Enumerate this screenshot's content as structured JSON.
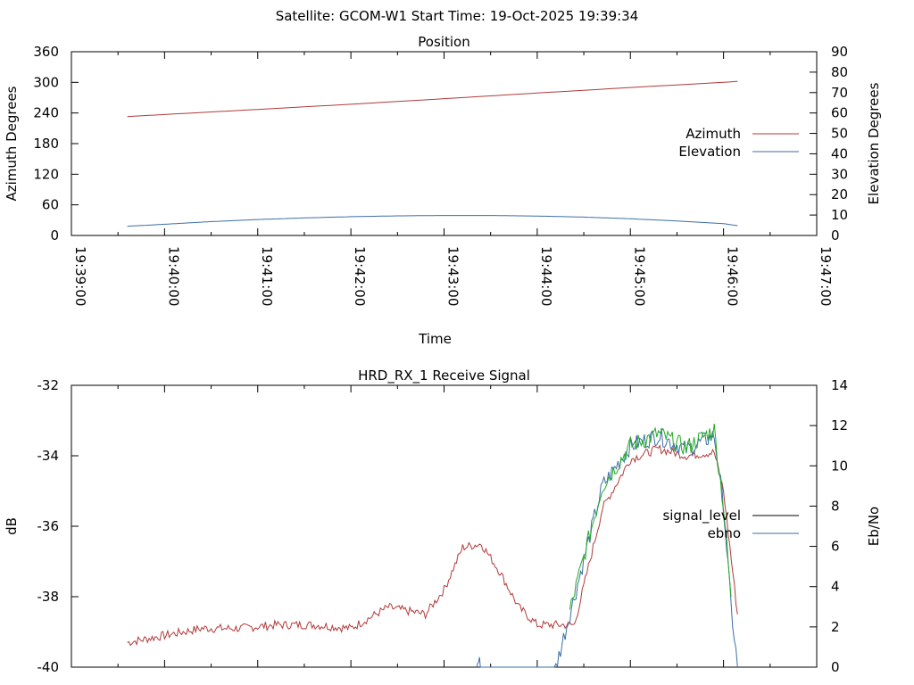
{
  "header": "Satellite: GCOM-W1    Start Time: 19-Oct-2025 19:39:34",
  "chart_data": [
    {
      "type": "line",
      "title": "Position",
      "xlabel": "Time",
      "ylabel": "Azimuth Degrees",
      "y2label": "Elevation Degrees",
      "x_ticks": [
        "19:39:00",
        "19:40:00",
        "19:41:00",
        "19:42:00",
        "19:43:00",
        "19:44:00",
        "19:45:00",
        "19:46:00",
        "19:47:00"
      ],
      "x_range_minutes": [
        0,
        8
      ],
      "y_ticks": [
        "0",
        "60",
        "120",
        "180",
        "240",
        "300",
        "360"
      ],
      "ylim": [
        0,
        360
      ],
      "y2_ticks": [
        "0",
        "10",
        "20",
        "30",
        "40",
        "50",
        "60",
        "70",
        "80",
        "90"
      ],
      "y2lim": [
        0,
        90
      ],
      "legend_position": "right",
      "grid": false,
      "series": [
        {
          "name": "Azimuth",
          "axis": "y",
          "color": "#b03a3a",
          "x": [
            0.6,
            1.0,
            2.0,
            3.0,
            4.0,
            5.0,
            6.0,
            7.0,
            7.15
          ],
          "values": [
            233,
            237,
            247,
            257,
            268,
            279,
            290,
            300,
            302
          ]
        },
        {
          "name": "Elevation",
          "axis": "y2",
          "color": "#3a6ea5",
          "x": [
            0.6,
            1.0,
            1.5,
            2.0,
            2.5,
            3.0,
            3.5,
            4.0,
            4.5,
            5.0,
            5.5,
            6.0,
            6.5,
            7.0,
            7.15
          ],
          "values": [
            4.5,
            5.5,
            6.8,
            7.8,
            8.6,
            9.2,
            9.6,
            9.8,
            9.8,
            9.5,
            9.0,
            8.2,
            7.1,
            5.8,
            4.8
          ]
        }
      ]
    },
    {
      "type": "line",
      "title": "HRD_RX_1 Receive Signal",
      "xlabel": "",
      "ylabel": "dB",
      "y2label": "Eb/No",
      "y_ticks": [
        "-40",
        "-38",
        "-36",
        "-34",
        "-32"
      ],
      "ylim": [
        -40,
        -32
      ],
      "y2_ticks": [
        "0",
        "2",
        "4",
        "6",
        "8",
        "10",
        "12",
        "14"
      ],
      "y2lim": [
        0,
        14
      ],
      "legend_position": "right",
      "grid": false,
      "series": [
        {
          "name": "signal_level",
          "axis": "y",
          "color": "#b03a3a",
          "x": [
            0.6,
            1.0,
            1.4,
            1.8,
            2.2,
            2.6,
            3.0,
            3.4,
            3.8,
            4.0,
            4.2,
            4.4,
            4.6,
            4.8,
            5.0,
            5.2,
            5.4,
            5.7,
            6.0,
            6.3,
            6.6,
            6.9,
            7.0,
            7.15
          ],
          "values": [
            -39.3,
            -39.1,
            -38.9,
            -38.9,
            -38.8,
            -38.8,
            -38.9,
            -38.3,
            -38.5,
            -37.8,
            -36.6,
            -36.5,
            -37.3,
            -38.3,
            -38.8,
            -38.8,
            -38.8,
            -35.5,
            -34.1,
            -33.8,
            -34.0,
            -33.9,
            -35.0,
            -38.5
          ]
        },
        {
          "name": "ebno",
          "axis": "y2",
          "color": "#3a6ea5",
          "x": [
            4.35,
            4.37,
            4.39,
            5.2,
            5.4,
            5.7,
            6.0,
            6.3,
            6.6,
            6.9,
            7.0,
            7.08,
            7.15
          ],
          "values": [
            0,
            0.5,
            0,
            0,
            3.5,
            9.0,
            11.0,
            11.5,
            10.8,
            11.5,
            8.0,
            3.0,
            0
          ]
        },
        {
          "name": "",
          "axis": "y2",
          "color": "#22aa22",
          "x": [
            5.35,
            5.7,
            6.0,
            6.3,
            6.6,
            6.9,
            7.0,
            7.08
          ],
          "values": [
            2.8,
            9.0,
            11.0,
            11.6,
            10.9,
            11.8,
            8.0,
            3.5
          ]
        }
      ]
    }
  ]
}
